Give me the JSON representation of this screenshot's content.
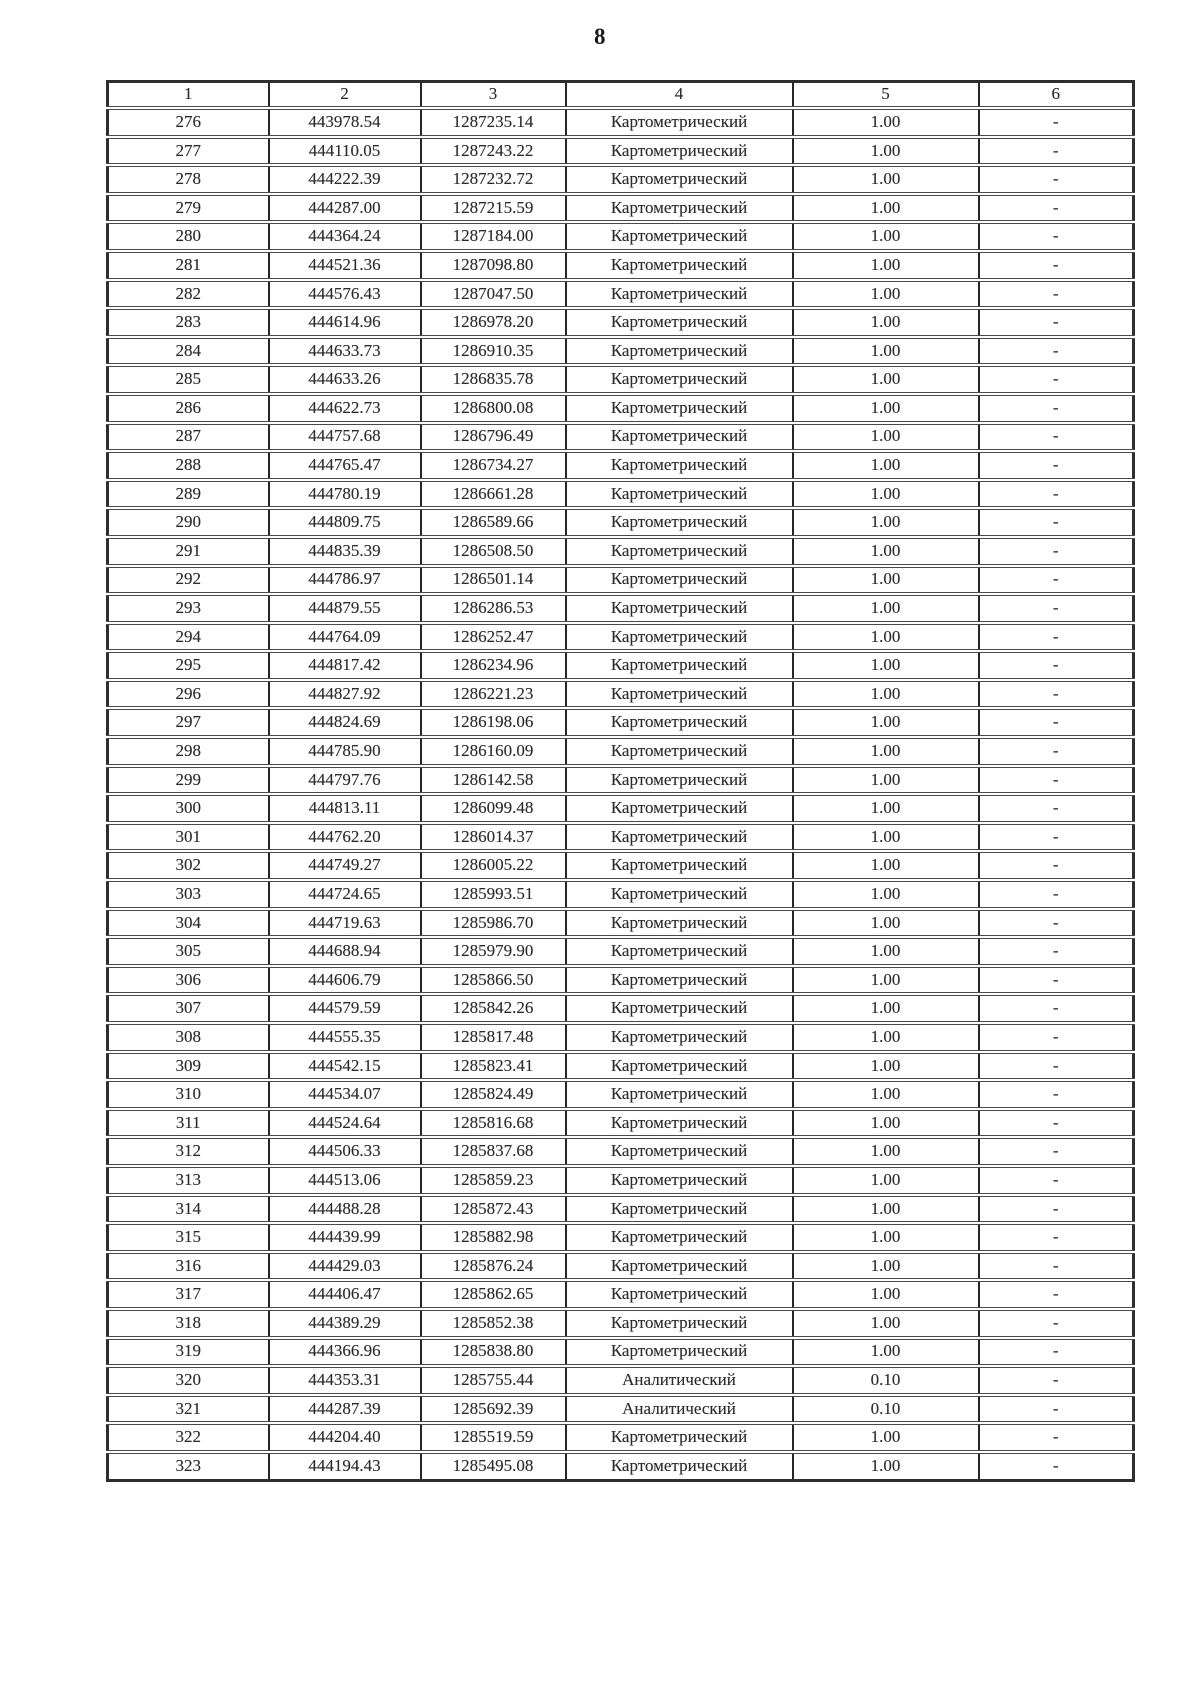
{
  "page": {
    "number": "8"
  },
  "table": {
    "headers": [
      "1",
      "2",
      "3",
      "4",
      "5",
      "6"
    ],
    "rows": [
      [
        "276",
        "443978.54",
        "1287235.14",
        "Картометрический",
        "1.00",
        "-"
      ],
      [
        "277",
        "444110.05",
        "1287243.22",
        "Картометрический",
        "1.00",
        "-"
      ],
      [
        "278",
        "444222.39",
        "1287232.72",
        "Картометрический",
        "1.00",
        "-"
      ],
      [
        "279",
        "444287.00",
        "1287215.59",
        "Картометрический",
        "1.00",
        "-"
      ],
      [
        "280",
        "444364.24",
        "1287184.00",
        "Картометрический",
        "1.00",
        "-"
      ],
      [
        "281",
        "444521.36",
        "1287098.80",
        "Картометрический",
        "1.00",
        "-"
      ],
      [
        "282",
        "444576.43",
        "1287047.50",
        "Картометрический",
        "1.00",
        "-"
      ],
      [
        "283",
        "444614.96",
        "1286978.20",
        "Картометрический",
        "1.00",
        "-"
      ],
      [
        "284",
        "444633.73",
        "1286910.35",
        "Картометрический",
        "1.00",
        "-"
      ],
      [
        "285",
        "444633.26",
        "1286835.78",
        "Картометрический",
        "1.00",
        "-"
      ],
      [
        "286",
        "444622.73",
        "1286800.08",
        "Картометрический",
        "1.00",
        "-"
      ],
      [
        "287",
        "444757.68",
        "1286796.49",
        "Картометрический",
        "1.00",
        "-"
      ],
      [
        "288",
        "444765.47",
        "1286734.27",
        "Картометрический",
        "1.00",
        "-"
      ],
      [
        "289",
        "444780.19",
        "1286661.28",
        "Картометрический",
        "1.00",
        "-"
      ],
      [
        "290",
        "444809.75",
        "1286589.66",
        "Картометрический",
        "1.00",
        "-"
      ],
      [
        "291",
        "444835.39",
        "1286508.50",
        "Картометрический",
        "1.00",
        "-"
      ],
      [
        "292",
        "444786.97",
        "1286501.14",
        "Картометрический",
        "1.00",
        "-"
      ],
      [
        "293",
        "444879.55",
        "1286286.53",
        "Картометрический",
        "1.00",
        "-"
      ],
      [
        "294",
        "444764.09",
        "1286252.47",
        "Картометрический",
        "1.00",
        "-"
      ],
      [
        "295",
        "444817.42",
        "1286234.96",
        "Картометрический",
        "1.00",
        "-"
      ],
      [
        "296",
        "444827.92",
        "1286221.23",
        "Картометрический",
        "1.00",
        "-"
      ],
      [
        "297",
        "444824.69",
        "1286198.06",
        "Картометрический",
        "1.00",
        "-"
      ],
      [
        "298",
        "444785.90",
        "1286160.09",
        "Картометрический",
        "1.00",
        "-"
      ],
      [
        "299",
        "444797.76",
        "1286142.58",
        "Картометрический",
        "1.00",
        "-"
      ],
      [
        "300",
        "444813.11",
        "1286099.48",
        "Картометрический",
        "1.00",
        "-"
      ],
      [
        "301",
        "444762.20",
        "1286014.37",
        "Картометрический",
        "1.00",
        "-"
      ],
      [
        "302",
        "444749.27",
        "1286005.22",
        "Картометрический",
        "1.00",
        "-"
      ],
      [
        "303",
        "444724.65",
        "1285993.51",
        "Картометрический",
        "1.00",
        "-"
      ],
      [
        "304",
        "444719.63",
        "1285986.70",
        "Картометрический",
        "1.00",
        "-"
      ],
      [
        "305",
        "444688.94",
        "1285979.90",
        "Картометрический",
        "1.00",
        "-"
      ],
      [
        "306",
        "444606.79",
        "1285866.50",
        "Картометрический",
        "1.00",
        "-"
      ],
      [
        "307",
        "444579.59",
        "1285842.26",
        "Картометрический",
        "1.00",
        "-"
      ],
      [
        "308",
        "444555.35",
        "1285817.48",
        "Картометрический",
        "1.00",
        "-"
      ],
      [
        "309",
        "444542.15",
        "1285823.41",
        "Картометрический",
        "1.00",
        "-"
      ],
      [
        "310",
        "444534.07",
        "1285824.49",
        "Картометрический",
        "1.00",
        "-"
      ],
      [
        "311",
        "444524.64",
        "1285816.68",
        "Картометрический",
        "1.00",
        "-"
      ],
      [
        "312",
        "444506.33",
        "1285837.68",
        "Картометрический",
        "1.00",
        "-"
      ],
      [
        "313",
        "444513.06",
        "1285859.23",
        "Картометрический",
        "1.00",
        "-"
      ],
      [
        "314",
        "444488.28",
        "1285872.43",
        "Картометрический",
        "1.00",
        "-"
      ],
      [
        "315",
        "444439.99",
        "1285882.98",
        "Картометрический",
        "1.00",
        "-"
      ],
      [
        "316",
        "444429.03",
        "1285876.24",
        "Картометрический",
        "1.00",
        "-"
      ],
      [
        "317",
        "444406.47",
        "1285862.65",
        "Картометрический",
        "1.00",
        "-"
      ],
      [
        "318",
        "444389.29",
        "1285852.38",
        "Картометрический",
        "1.00",
        "-"
      ],
      [
        "319",
        "444366.96",
        "1285838.80",
        "Картометрический",
        "1.00",
        "-"
      ],
      [
        "320",
        "444353.31",
        "1285755.44",
        "Аналитический",
        "0.10",
        "-"
      ],
      [
        "321",
        "444287.39",
        "1285692.39",
        "Аналитический",
        "0.10",
        "-"
      ],
      [
        "322",
        "444204.40",
        "1285519.59",
        "Картометрический",
        "1.00",
        "-"
      ],
      [
        "323",
        "444194.43",
        "1285495.08",
        "Картометрический",
        "1.00",
        "-"
      ]
    ]
  }
}
